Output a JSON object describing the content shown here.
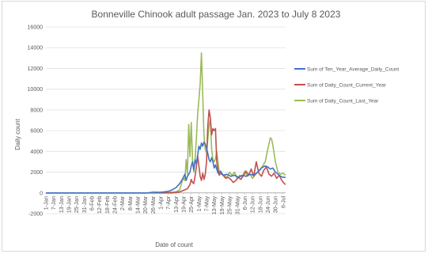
{
  "chart_data": {
    "type": "line",
    "title": "Bonneville Chinook adult passage Jan. 2023 to July 8 2023",
    "xlabel": "Date of count",
    "ylabel": "Daily count",
    "ylim": [
      -2000,
      16000
    ],
    "yticks": [
      -2000,
      0,
      2000,
      4000,
      6000,
      8000,
      10000,
      12000,
      14000,
      16000
    ],
    "ytick_labels": [
      "-2000",
      "0",
      "2000",
      "4000",
      "6000",
      "8000",
      "10000",
      "12000",
      "14000",
      "16000"
    ],
    "x_start": "2023-01-01",
    "x_end": "2023-07-08",
    "x_tick_labels": [
      "1-Jan",
      "7-Jan",
      "13-Jan",
      "19-Jan",
      "25-Jan",
      "31-Jan",
      "6-Feb",
      "12-Feb",
      "18-Feb",
      "24-Feb",
      "2-Mar",
      "8-Mar",
      "14-Mar",
      "20-Mar",
      "26-Mar",
      "1-Apr",
      "7-Apr",
      "13-Apr",
      "19-Apr",
      "25-Apr",
      "1-May",
      "7-May",
      "13-May",
      "19-May",
      "25-May",
      "31-May",
      "6-Jun",
      "12-Jun",
      "18-Jun",
      "24-Jun",
      "30-Jun",
      "6-Jul"
    ],
    "grid": true,
    "legend_position": "right",
    "series": [
      {
        "name": "Sum of Ten_Year_Average_Daily_Count",
        "color": "#4472c4",
        "points": [
          [
            "2023-01-01",
            0
          ],
          [
            "2023-03-20",
            0
          ],
          [
            "2023-03-26",
            20
          ],
          [
            "2023-04-01",
            60
          ],
          [
            "2023-04-07",
            150
          ],
          [
            "2023-04-10",
            300
          ],
          [
            "2023-04-13",
            500
          ],
          [
            "2023-04-16",
            900
          ],
          [
            "2023-04-18",
            1300
          ],
          [
            "2023-04-20",
            1800
          ],
          [
            "2023-04-21",
            1200
          ],
          [
            "2023-04-22",
            1600
          ],
          [
            "2023-04-24",
            2000
          ],
          [
            "2023-04-25",
            2600
          ],
          [
            "2023-04-26",
            3000
          ],
          [
            "2023-04-27",
            2200
          ],
          [
            "2023-04-28",
            3200
          ],
          [
            "2023-04-29",
            2800
          ],
          [
            "2023-04-30",
            3600
          ],
          [
            "2023-05-01",
            4500
          ],
          [
            "2023-05-02",
            4200
          ],
          [
            "2023-05-03",
            4800
          ],
          [
            "2023-05-04",
            4500
          ],
          [
            "2023-05-05",
            4900
          ],
          [
            "2023-05-06",
            4700
          ],
          [
            "2023-05-07",
            4300
          ],
          [
            "2023-05-08",
            3800
          ],
          [
            "2023-05-09",
            3200
          ],
          [
            "2023-05-10",
            3000
          ],
          [
            "2023-05-11",
            3400
          ],
          [
            "2023-05-12",
            3000
          ],
          [
            "2023-05-13",
            2400
          ],
          [
            "2023-05-14",
            2700
          ],
          [
            "2023-05-15",
            2300
          ],
          [
            "2023-05-16",
            1900
          ],
          [
            "2023-05-18",
            2100
          ],
          [
            "2023-05-20",
            1700
          ],
          [
            "2023-05-23",
            1800
          ],
          [
            "2023-05-26",
            1600
          ],
          [
            "2023-05-29",
            1700
          ],
          [
            "2023-06-01",
            1500
          ],
          [
            "2023-06-04",
            1700
          ],
          [
            "2023-06-07",
            1600
          ],
          [
            "2023-06-10",
            1800
          ],
          [
            "2023-06-13",
            1700
          ],
          [
            "2023-06-16",
            2000
          ],
          [
            "2023-06-19",
            2400
          ],
          [
            "2023-06-22",
            2600
          ],
          [
            "2023-06-24",
            2500
          ],
          [
            "2023-06-26",
            2300
          ],
          [
            "2023-06-28",
            2400
          ],
          [
            "2023-06-30",
            2000
          ],
          [
            "2023-07-02",
            1800
          ],
          [
            "2023-07-04",
            1600
          ],
          [
            "2023-07-06",
            1500
          ],
          [
            "2023-07-08",
            1500
          ]
        ]
      },
      {
        "name": "Sum of Daily_Count_Current_Year",
        "color": "#c0504d",
        "points": [
          [
            "2023-01-01",
            0
          ],
          [
            "2023-04-10",
            0
          ],
          [
            "2023-04-16",
            100
          ],
          [
            "2023-04-22",
            400
          ],
          [
            "2023-04-24",
            800
          ],
          [
            "2023-04-25",
            1300
          ],
          [
            "2023-04-26",
            1000
          ],
          [
            "2023-04-27",
            900
          ],
          [
            "2023-04-28",
            1600
          ],
          [
            "2023-04-29",
            2500
          ],
          [
            "2023-04-30",
            3600
          ],
          [
            "2023-05-01",
            2600
          ],
          [
            "2023-05-02",
            1600
          ],
          [
            "2023-05-03",
            1200
          ],
          [
            "2023-05-04",
            1900
          ],
          [
            "2023-05-05",
            1300
          ],
          [
            "2023-05-06",
            1800
          ],
          [
            "2023-05-07",
            3000
          ],
          [
            "2023-05-08",
            6500
          ],
          [
            "2023-05-09",
            8000
          ],
          [
            "2023-05-10",
            7200
          ],
          [
            "2023-05-11",
            5600
          ],
          [
            "2023-05-12",
            6200
          ],
          [
            "2023-05-13",
            6000
          ],
          [
            "2023-05-14",
            6200
          ],
          [
            "2023-05-15",
            3000
          ],
          [
            "2023-05-16",
            2200
          ],
          [
            "2023-05-17",
            1700
          ],
          [
            "2023-05-18",
            1900
          ],
          [
            "2023-05-20",
            1700
          ],
          [
            "2023-05-22",
            1400
          ],
          [
            "2023-05-24",
            1500
          ],
          [
            "2023-05-26",
            1300
          ],
          [
            "2023-05-28",
            1000
          ],
          [
            "2023-05-30",
            1200
          ],
          [
            "2023-06-01",
            1500
          ],
          [
            "2023-06-03",
            1300
          ],
          [
            "2023-06-05",
            1700
          ],
          [
            "2023-06-07",
            2100
          ],
          [
            "2023-06-09",
            1700
          ],
          [
            "2023-06-11",
            2300
          ],
          [
            "2023-06-13",
            1600
          ],
          [
            "2023-06-15",
            3000
          ],
          [
            "2023-06-17",
            1900
          ],
          [
            "2023-06-19",
            1600
          ],
          [
            "2023-06-21",
            2200
          ],
          [
            "2023-06-23",
            2500
          ],
          [
            "2023-06-25",
            1800
          ],
          [
            "2023-06-27",
            1600
          ],
          [
            "2023-06-29",
            1900
          ],
          [
            "2023-07-01",
            1400
          ],
          [
            "2023-07-03",
            1700
          ],
          [
            "2023-07-05",
            1200
          ],
          [
            "2023-07-07",
            900
          ],
          [
            "2023-07-08",
            800
          ]
        ]
      },
      {
        "name": "Sum of Daily_Count_Last_Year",
        "color": "#9bbb59",
        "points": [
          [
            "2023-01-01",
            0
          ],
          [
            "2023-03-22",
            0
          ],
          [
            "2023-03-26",
            100
          ],
          [
            "2023-04-02",
            50
          ],
          [
            "2023-04-13",
            100
          ],
          [
            "2023-04-16",
            300
          ],
          [
            "2023-04-18",
            1200
          ],
          [
            "2023-04-19",
            1400
          ],
          [
            "2023-04-20",
            1200
          ],
          [
            "2023-04-21",
            3200
          ],
          [
            "2023-04-22",
            1800
          ],
          [
            "2023-04-23",
            6600
          ],
          [
            "2023-04-24",
            3500
          ],
          [
            "2023-04-25",
            6800
          ],
          [
            "2023-04-26",
            3200
          ],
          [
            "2023-04-27",
            2000
          ],
          [
            "2023-04-28",
            3200
          ],
          [
            "2023-04-29",
            5200
          ],
          [
            "2023-04-30",
            7500
          ],
          [
            "2023-05-01",
            9000
          ],
          [
            "2023-05-02",
            10500
          ],
          [
            "2023-05-03",
            13500
          ],
          [
            "2023-05-04",
            9500
          ],
          [
            "2023-05-05",
            5500
          ],
          [
            "2023-05-06",
            4200
          ],
          [
            "2023-05-07",
            3900
          ],
          [
            "2023-05-08",
            5200
          ],
          [
            "2023-05-09",
            6500
          ],
          [
            "2023-05-10",
            7100
          ],
          [
            "2023-05-11",
            4200
          ],
          [
            "2023-05-12",
            3200
          ],
          [
            "2023-05-13",
            3000
          ],
          [
            "2023-05-14",
            3300
          ],
          [
            "2023-05-15",
            4000
          ],
          [
            "2023-05-16",
            3000
          ],
          [
            "2023-05-17",
            2000
          ],
          [
            "2023-05-19",
            1800
          ],
          [
            "2023-05-21",
            1700
          ],
          [
            "2023-05-23",
            1500
          ],
          [
            "2023-05-25",
            2000
          ],
          [
            "2023-05-27",
            1700
          ],
          [
            "2023-05-29",
            2000
          ],
          [
            "2023-05-31",
            1400
          ],
          [
            "2023-06-02",
            1700
          ],
          [
            "2023-06-04",
            1500
          ],
          [
            "2023-06-06",
            2100
          ],
          [
            "2023-06-08",
            1600
          ],
          [
            "2023-06-10",
            1800
          ],
          [
            "2023-06-12",
            1400
          ],
          [
            "2023-06-14",
            1700
          ],
          [
            "2023-06-16",
            2000
          ],
          [
            "2023-06-18",
            2200
          ],
          [
            "2023-06-20",
            2600
          ],
          [
            "2023-06-22",
            3000
          ],
          [
            "2023-06-24",
            4200
          ],
          [
            "2023-06-26",
            5300
          ],
          [
            "2023-06-27",
            5200
          ],
          [
            "2023-06-28",
            4600
          ],
          [
            "2023-06-30",
            3000
          ],
          [
            "2023-07-02",
            2000
          ],
          [
            "2023-07-04",
            1800
          ],
          [
            "2023-07-06",
            1900
          ],
          [
            "2023-07-08",
            1700
          ]
        ]
      }
    ]
  }
}
